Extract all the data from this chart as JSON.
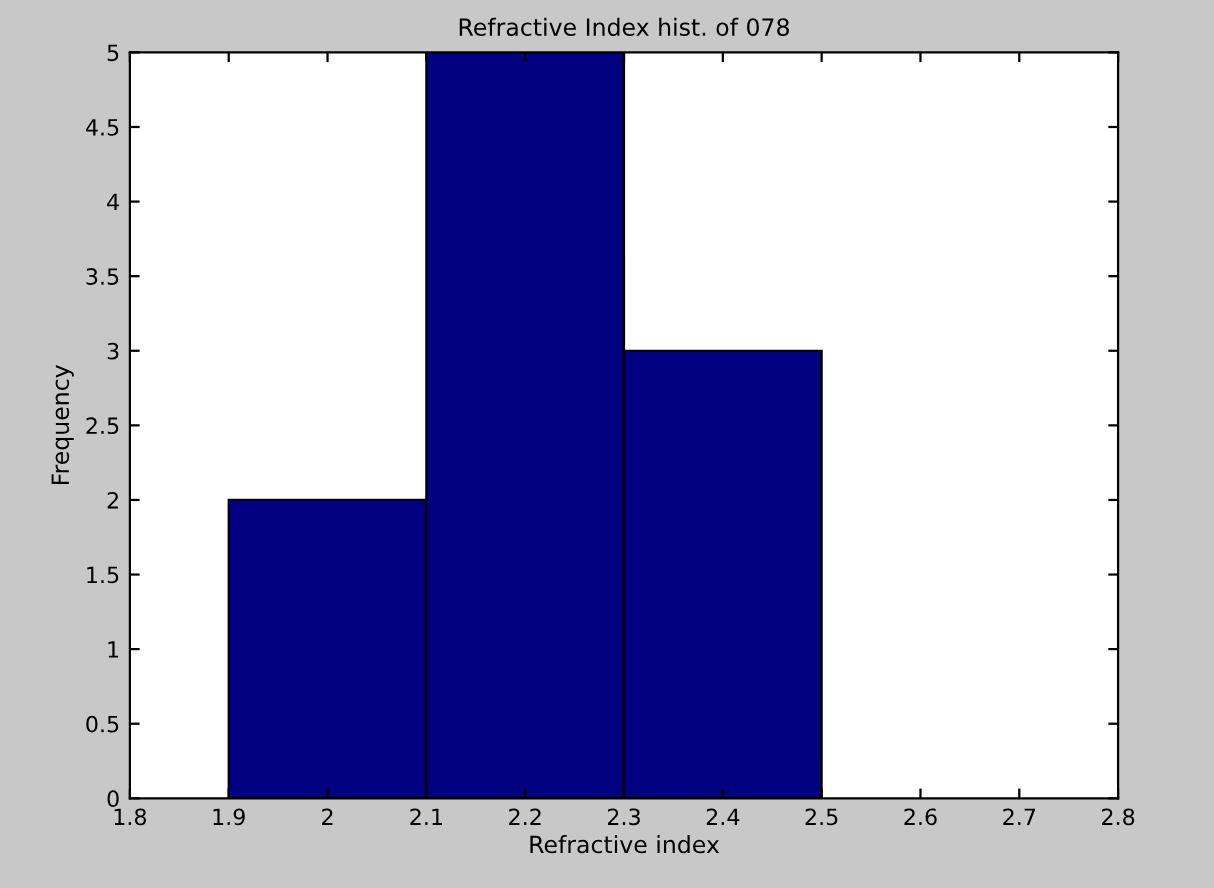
{
  "chart_data": {
    "type": "histogram",
    "title": "Refractive Index hist. of 078",
    "xlabel": "Refractive index",
    "ylabel": "Frequency",
    "bins": [
      1.9,
      2.1,
      2.3,
      2.5
    ],
    "values": [
      2,
      5,
      3
    ],
    "color": "#000080",
    "xlim": [
      1.8,
      2.8
    ],
    "xticks": [
      1.8,
      1.9,
      2,
      2.1,
      2.2,
      2.3,
      2.4,
      2.5,
      2.6,
      2.7,
      2.8
    ],
    "ylim": [
      0,
      5
    ],
    "yticks": [
      0,
      0.5,
      1,
      1.5,
      2,
      2.5,
      3,
      3.5,
      4,
      4.5,
      5
    ],
    "grid": false,
    "legend": false
  }
}
